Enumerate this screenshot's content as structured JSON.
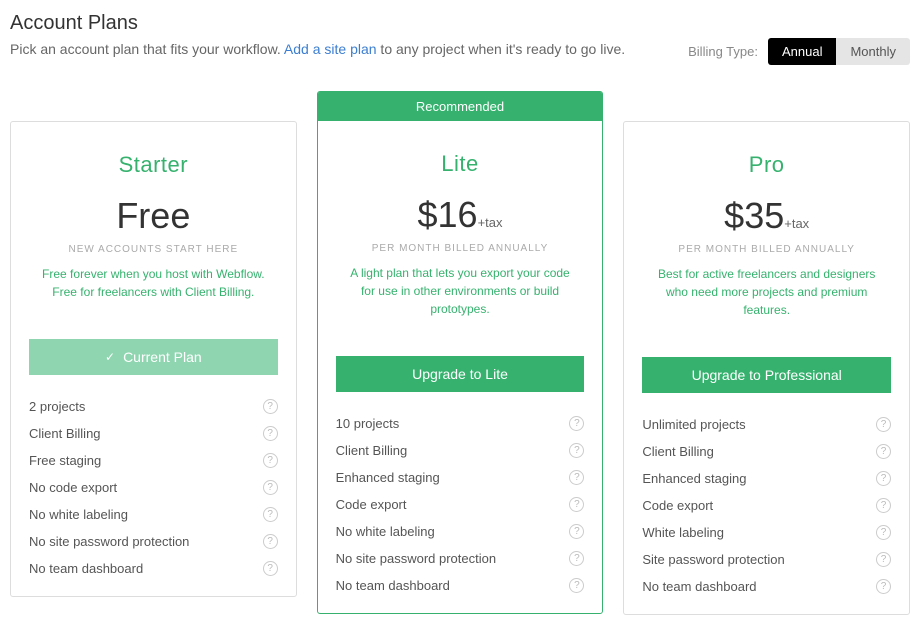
{
  "header": {
    "title": "Account Plans",
    "subtitle_pre": "Pick an account plan that fits your workflow. ",
    "subtitle_link": "Add a site plan",
    "subtitle_post": " to any project when it's ready to go live."
  },
  "billing": {
    "label": "Billing Type:",
    "annual": "Annual",
    "monthly": "Monthly",
    "active": "annual"
  },
  "colors": {
    "accent": "#36b26e",
    "accent_light": "#8fd6b0"
  },
  "plans": [
    {
      "id": "starter",
      "name": "Starter",
      "price": "Free",
      "tax": "",
      "sub": "NEW ACCOUNTS START HERE",
      "desc": "Free forever when you host with Webflow. Free for freelancers with Client Billing.",
      "button": "Current Plan",
      "button_kind": "current",
      "recommended": false,
      "features": [
        "2 projects",
        "Client Billing",
        "Free staging",
        "No code export",
        "No white labeling",
        "No site password protection",
        "No team dashboard"
      ]
    },
    {
      "id": "lite",
      "name": "Lite",
      "price": "$16",
      "tax": "+tax",
      "sub": "PER MONTH BILLED ANNUALLY",
      "desc": "A light plan that lets you export your code for use in other environments or build prototypes.",
      "button": "Upgrade to Lite",
      "button_kind": "upgrade",
      "recommended": true,
      "rec_label": "Recommended",
      "features": [
        "10 projects",
        "Client Billing",
        "Enhanced staging",
        "Code export",
        "No white labeling",
        "No site password protection",
        "No team dashboard"
      ]
    },
    {
      "id": "pro",
      "name": "Pro",
      "price": "$35",
      "tax": "+tax",
      "sub": "PER MONTH BILLED ANNUALLY",
      "desc": "Best for active freelancers and designers who need more projects and premium features.",
      "button": "Upgrade to Professional",
      "button_kind": "upgrade",
      "recommended": false,
      "features": [
        "Unlimited projects",
        "Client Billing",
        "Enhanced staging",
        "Code export",
        "White labeling",
        "Site password protection",
        "No team dashboard"
      ]
    }
  ]
}
